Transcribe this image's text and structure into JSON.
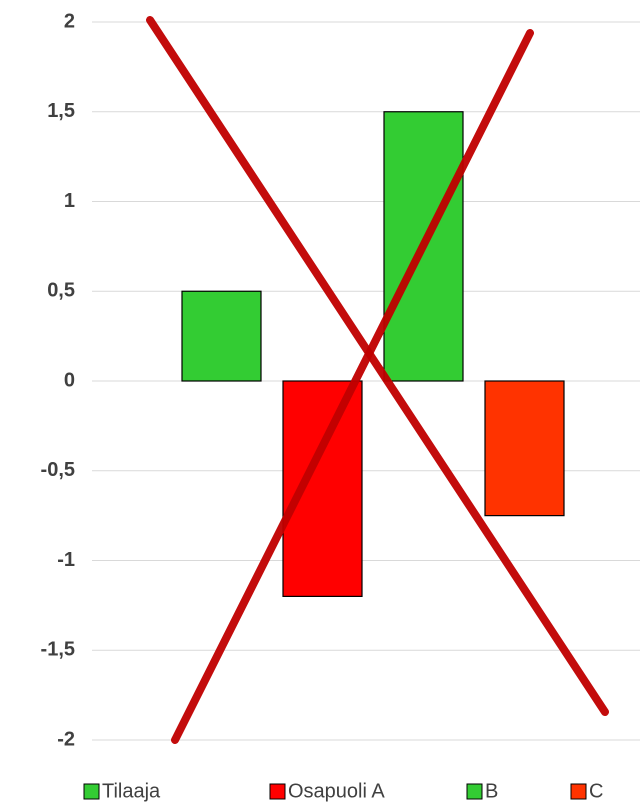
{
  "chart_data": {
    "type": "bar",
    "categories": [
      null
    ],
    "series": [
      {
        "name": "Tilaaja",
        "color": "#33cc33",
        "values": [
          0.5
        ]
      },
      {
        "name": "Osapuoli A",
        "color": "#ff0000",
        "values": [
          -1.2
        ]
      },
      {
        "name": "B",
        "color": "#33cc33",
        "values": [
          1.5
        ]
      },
      {
        "name": "C",
        "color": "#ff3300",
        "values": [
          -0.75
        ]
      }
    ],
    "ylim": [
      -2,
      2
    ],
    "yticks": [
      -2,
      {
        "value": -1.5,
        "label": "-1,5"
      },
      -1,
      {
        "value": -0.5,
        "label": "-0,5"
      },
      0,
      {
        "value": 0.5,
        "label": "0,5"
      },
      1,
      {
        "value": 1.5,
        "label": "1,5"
      },
      2
    ],
    "grid": true,
    "legend": "bottom"
  }
}
